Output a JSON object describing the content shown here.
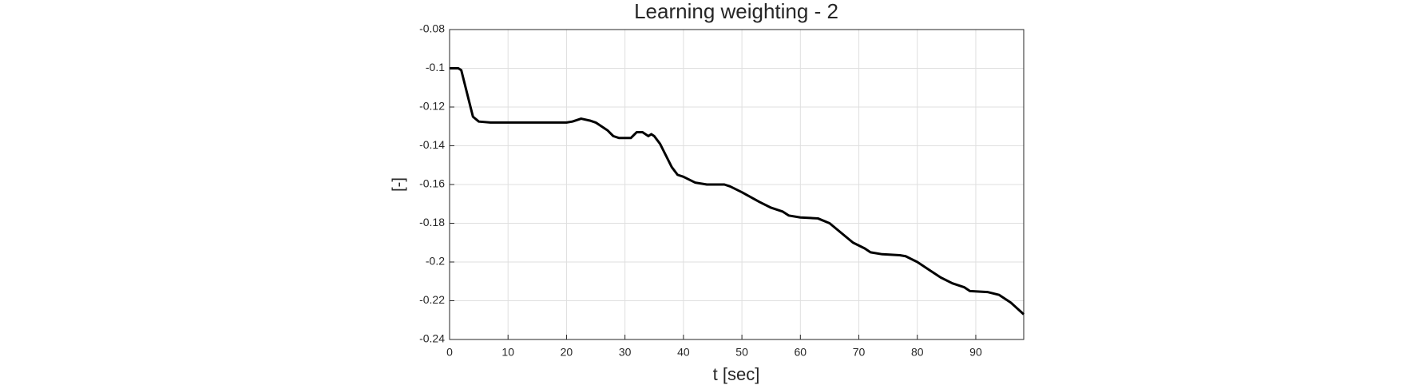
{
  "chart_data": {
    "type": "line",
    "title": "Learning weighting - 2",
    "x_label": "t [sec]",
    "y_label": "[-]",
    "xlim": [
      0,
      98.2
    ],
    "ylim": [
      -0.24,
      -0.08
    ],
    "xticks": [
      0,
      10,
      20,
      30,
      40,
      50,
      60,
      70,
      80,
      90
    ],
    "yticks": [
      -0.24,
      -0.22,
      -0.2,
      -0.18,
      -0.16,
      -0.14,
      -0.12,
      -0.1,
      -0.08
    ],
    "grid": true,
    "x": [
      0,
      1.5,
      2,
      3,
      4,
      5,
      7,
      10,
      20,
      21,
      22.5,
      24,
      25,
      27,
      28,
      29,
      31,
      32,
      33,
      34,
      34.5,
      35,
      36,
      37,
      38,
      39,
      40,
      42,
      44,
      47,
      48,
      50,
      53,
      55,
      57,
      58,
      60,
      63,
      65,
      67,
      69,
      71,
      72,
      74,
      77,
      78,
      80,
      82,
      84,
      86,
      88,
      89,
      92,
      94,
      96,
      98.2
    ],
    "series": [
      {
        "color": "#000000",
        "values": [
          -0.1,
          -0.1,
          -0.101,
          -0.113,
          -0.125,
          -0.1275,
          -0.128,
          -0.128,
          -0.128,
          -0.1275,
          -0.126,
          -0.127,
          -0.128,
          -0.132,
          -0.135,
          -0.136,
          -0.136,
          -0.133,
          -0.133,
          -0.135,
          -0.134,
          -0.135,
          -0.139,
          -0.145,
          -0.151,
          -0.155,
          -0.156,
          -0.159,
          -0.16,
          -0.16,
          -0.161,
          -0.164,
          -0.169,
          -0.172,
          -0.174,
          -0.176,
          -0.177,
          -0.1775,
          -0.18,
          -0.185,
          -0.19,
          -0.193,
          -0.195,
          -0.196,
          -0.1965,
          -0.197,
          -0.2,
          -0.204,
          -0.208,
          -0.211,
          -0.213,
          -0.215,
          -0.2155,
          -0.217,
          -0.221,
          -0.227
        ]
      }
    ]
  }
}
